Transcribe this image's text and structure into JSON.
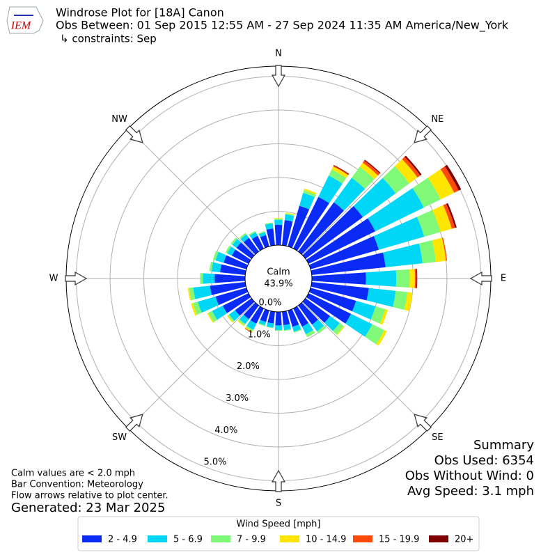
{
  "chart_data": {
    "type": "windrose",
    "logo": "IEM",
    "title": "Windrose Plot for [18A] Canon",
    "subtitle": "Obs Between: 01 Sep 2015 12:55 AM - 27 Sep 2024 11:35 AM America/New_York",
    "constraints": "↳ constraints: Sep",
    "direction_labels": [
      "N",
      "NE",
      "E",
      "SE",
      "S",
      "SW",
      "W",
      "NW"
    ],
    "x": [
      0,
      10,
      20,
      30,
      40,
      50,
      60,
      70,
      80,
      90,
      100,
      110,
      120,
      130,
      140,
      150,
      160,
      170,
      180,
      190,
      200,
      210,
      220,
      230,
      240,
      250,
      260,
      270,
      280,
      290,
      300,
      310,
      320,
      330,
      340,
      350
    ],
    "ylim": [
      0,
      5.3
    ],
    "yticks": [
      {
        "value": 0,
        "label": "0.0%"
      },
      {
        "value": 1,
        "label": "1.0%"
      },
      {
        "value": 2,
        "label": "2.0%"
      },
      {
        "value": 3,
        "label": "3.0%"
      },
      {
        "value": 4,
        "label": "4.0%"
      },
      {
        "value": 5,
        "label": "5.0%"
      }
    ],
    "grid": true,
    "calm": {
      "label": "Calm",
      "value": 43.9,
      "value_label": "43.9%"
    },
    "legend_title": "Wind Speed [mph]",
    "series": [
      {
        "name": "2 - 4.9",
        "color": "#0a2af5",
        "values": [
          0.6,
          0.75,
          1.25,
          1.7,
          1.8,
          2.1,
          2.2,
          2.1,
          2.2,
          1.6,
          1.7,
          1.4,
          1.4,
          0.9,
          0.7,
          0.6,
          0.5,
          0.4,
          0.4,
          0.35,
          0.35,
          0.5,
          0.5,
          0.6,
          0.85,
          0.95,
          1.05,
          0.9,
          0.75,
          0.7,
          0.55,
          0.55,
          0.5,
          0.42,
          0.35,
          0.5
        ]
      },
      {
        "name": "5 - 6.9",
        "color": "#00d6f5",
        "values": [
          0.15,
          0.17,
          0.4,
          0.7,
          0.9,
          1.2,
          1.6,
          1.4,
          1.1,
          0.9,
          0.8,
          0.6,
          0.7,
          0.35,
          0.25,
          0.25,
          0.15,
          0.15,
          0.14,
          0.12,
          0.1,
          0.2,
          0.18,
          0.22,
          0.35,
          0.55,
          0.5,
          0.35,
          0.25,
          0.25,
          0.15,
          0.15,
          0.13,
          0.12,
          0.09,
          0.15
        ]
      },
      {
        "name": "7 - 9.9",
        "color": "#80f878",
        "values": [
          0.03,
          0.03,
          0.08,
          0.2,
          0.4,
          0.5,
          0.55,
          0.5,
          0.4,
          0.4,
          0.35,
          0.3,
          0.4,
          0.15,
          0.08,
          0.1,
          0.03,
          0.02,
          0.02,
          0.02,
          0.03,
          0.05,
          0.05,
          0.05,
          0.12,
          0.15,
          0.12,
          0.08,
          0.07,
          0.08,
          0.06,
          0.06,
          0.05,
          0.04,
          0.03,
          0.03
        ]
      },
      {
        "name": "10 - 14.9",
        "color": "#ffe600",
        "values": [
          0.02,
          0.02,
          0.05,
          0.1,
          0.15,
          0.3,
          0.45,
          0.35,
          0.3,
          0.15,
          0.15,
          0.08,
          0.08,
          0.03,
          0,
          0,
          0,
          0,
          0,
          0,
          0,
          0.03,
          0.03,
          0.03,
          0.04,
          0.06,
          0.04,
          0.01,
          0,
          0,
          0,
          0,
          0,
          0,
          0,
          0
        ]
      },
      {
        "name": "15 - 19.9",
        "color": "#ff4a0a",
        "values": [
          0,
          0,
          0,
          0.03,
          0.08,
          0.1,
          0.15,
          0.1,
          0.03,
          0.05,
          0,
          0,
          0,
          0,
          0,
          0,
          0,
          0,
          0,
          0,
          0,
          0.02,
          0,
          0,
          0,
          0,
          0,
          0,
          0,
          0,
          0,
          0,
          0,
          0,
          0,
          0
        ]
      },
      {
        "name": "20+",
        "color": "#800000",
        "values": [
          0,
          0,
          0,
          0.02,
          0.03,
          0.05,
          0.08,
          0.05,
          0,
          0.02,
          0,
          0,
          0,
          0,
          0,
          0,
          0,
          0,
          0,
          0,
          0,
          0,
          0,
          0,
          0,
          0,
          0,
          0,
          0,
          0,
          0,
          0,
          0,
          0,
          0,
          0
        ]
      }
    ],
    "summary": [
      "Summary",
      "Obs Used: 6354",
      "Obs Without Wind: 0",
      "Avg Speed: 3.1 mph"
    ],
    "notes": [
      "Calm values are < 2.0 mph",
      "Bar Convention: Meteorology",
      "Flow arrows relative to plot center."
    ],
    "generated": "Generated: 23 Mar 2025"
  }
}
